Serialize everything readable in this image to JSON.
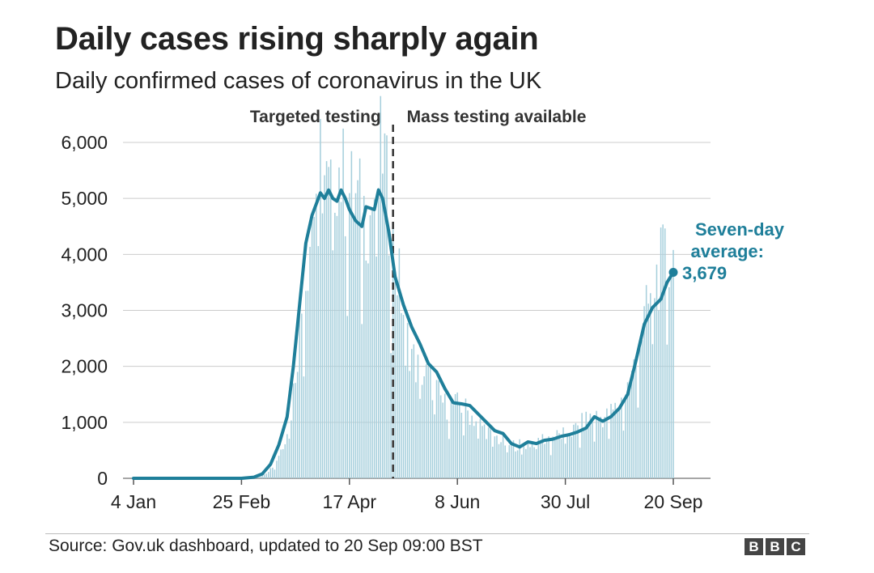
{
  "header": {
    "title": "Daily cases rising sharply again",
    "subtitle": "Daily confirmed cases of coronavirus in the UK"
  },
  "footer": {
    "source": "Source: Gov.uk dashboard, updated to 20 Sep 09:00 BST",
    "logo_letters": [
      "B",
      "B",
      "C"
    ]
  },
  "colors": {
    "bars": "#a6cfdc",
    "line": "#1f7f9a",
    "grid": "#cccccc",
    "divider": "#333333",
    "annotation": "#1f7f9a",
    "logo": "#444444"
  },
  "chart_data": {
    "type": "bar+line",
    "title": "Daily cases rising sharply again",
    "subtitle": "Daily confirmed cases of coronavirus in the UK",
    "xlabel": "",
    "ylabel": "",
    "ylim": [
      0,
      6000
    ],
    "x_start": "2020-01-04",
    "x_end": "2020-09-20",
    "xticks": [
      {
        "label": "4 Jan",
        "day": 0
      },
      {
        "label": "25 Feb",
        "day": 52
      },
      {
        "label": "17 Apr",
        "day": 104
      },
      {
        "label": "8 Jun",
        "day": 156
      },
      {
        "label": "30 Jul",
        "day": 208
      },
      {
        "label": "20 Sep",
        "day": 260
      }
    ],
    "yticks": [
      {
        "label": "0",
        "value": 0
      },
      {
        "label": "1,000",
        "value": 1000
      },
      {
        "label": "2,000",
        "value": 2000
      },
      {
        "label": "3,000",
        "value": 3000
      },
      {
        "label": "4,000",
        "value": 4000
      },
      {
        "label": "5,000",
        "value": 5000
      },
      {
        "label": "6,000",
        "value": 6000
      }
    ],
    "grid": true,
    "period_divider": {
      "day": 125,
      "left_label": "Targeted testing",
      "right_label": "Mass testing available"
    },
    "annotation": {
      "line1": "Seven-day",
      "line2": "average:",
      "value_label": "3,679",
      "day": 260,
      "value": 3679
    },
    "series": [
      {
        "name": "Daily confirmed cases",
        "type": "bar",
        "points": [
          [
            0,
            0
          ],
          [
            52,
            5
          ],
          [
            58,
            20
          ],
          [
            64,
            100
          ],
          [
            68,
            250
          ],
          [
            72,
            600
          ],
          [
            76,
            1200
          ],
          [
            80,
            2700
          ],
          [
            84,
            4000
          ],
          [
            86,
            4700
          ],
          [
            90,
            5700
          ],
          [
            94,
            5000
          ],
          [
            98,
            5700
          ],
          [
            102,
            5200
          ],
          [
            106,
            5000
          ],
          [
            110,
            4800
          ],
          [
            114,
            4700
          ],
          [
            118,
            5400
          ],
          [
            120,
            6000
          ],
          [
            124,
            4300
          ],
          [
            128,
            3500
          ],
          [
            132,
            2500
          ],
          [
            136,
            2000
          ],
          [
            142,
            1800
          ],
          [
            150,
            1300
          ],
          [
            158,
            1300
          ],
          [
            166,
            1000
          ],
          [
            172,
            800
          ],
          [
            180,
            600
          ],
          [
            188,
            600
          ],
          [
            196,
            700
          ],
          [
            204,
            750
          ],
          [
            212,
            850
          ],
          [
            220,
            1100
          ],
          [
            228,
            1100
          ],
          [
            234,
            1300
          ],
          [
            240,
            1800
          ],
          [
            246,
            2800
          ],
          [
            252,
            3600
          ],
          [
            256,
            3900
          ],
          [
            260,
            3900
          ]
        ]
      },
      {
        "name": "Seven-day average",
        "type": "line",
        "points": [
          [
            0,
            0
          ],
          [
            52,
            0
          ],
          [
            58,
            20
          ],
          [
            62,
            80
          ],
          [
            66,
            250
          ],
          [
            70,
            600
          ],
          [
            74,
            1100
          ],
          [
            77,
            2000
          ],
          [
            80,
            3100
          ],
          [
            83,
            4200
          ],
          [
            86,
            4700
          ],
          [
            88,
            4900
          ],
          [
            90,
            5100
          ],
          [
            92,
            5000
          ],
          [
            94,
            5150
          ],
          [
            96,
            5000
          ],
          [
            98,
            4950
          ],
          [
            100,
            5150
          ],
          [
            102,
            5000
          ],
          [
            104,
            4800
          ],
          [
            107,
            4600
          ],
          [
            110,
            4500
          ],
          [
            112,
            4850
          ],
          [
            116,
            4800
          ],
          [
            118,
            5150
          ],
          [
            120,
            5000
          ],
          [
            123,
            4400
          ],
          [
            126,
            3600
          ],
          [
            130,
            3100
          ],
          [
            134,
            2700
          ],
          [
            138,
            2400
          ],
          [
            142,
            2050
          ],
          [
            146,
            1900
          ],
          [
            150,
            1600
          ],
          [
            154,
            1350
          ],
          [
            158,
            1330
          ],
          [
            162,
            1300
          ],
          [
            166,
            1150
          ],
          [
            170,
            1000
          ],
          [
            174,
            850
          ],
          [
            178,
            800
          ],
          [
            182,
            620
          ],
          [
            186,
            560
          ],
          [
            190,
            650
          ],
          [
            194,
            620
          ],
          [
            198,
            680
          ],
          [
            202,
            700
          ],
          [
            206,
            750
          ],
          [
            210,
            780
          ],
          [
            214,
            830
          ],
          [
            218,
            900
          ],
          [
            222,
            1100
          ],
          [
            226,
            1020
          ],
          [
            230,
            1100
          ],
          [
            234,
            1250
          ],
          [
            238,
            1500
          ],
          [
            242,
            2100
          ],
          [
            246,
            2750
          ],
          [
            250,
            3050
          ],
          [
            254,
            3200
          ],
          [
            257,
            3500
          ],
          [
            260,
            3679
          ]
        ]
      }
    ]
  }
}
